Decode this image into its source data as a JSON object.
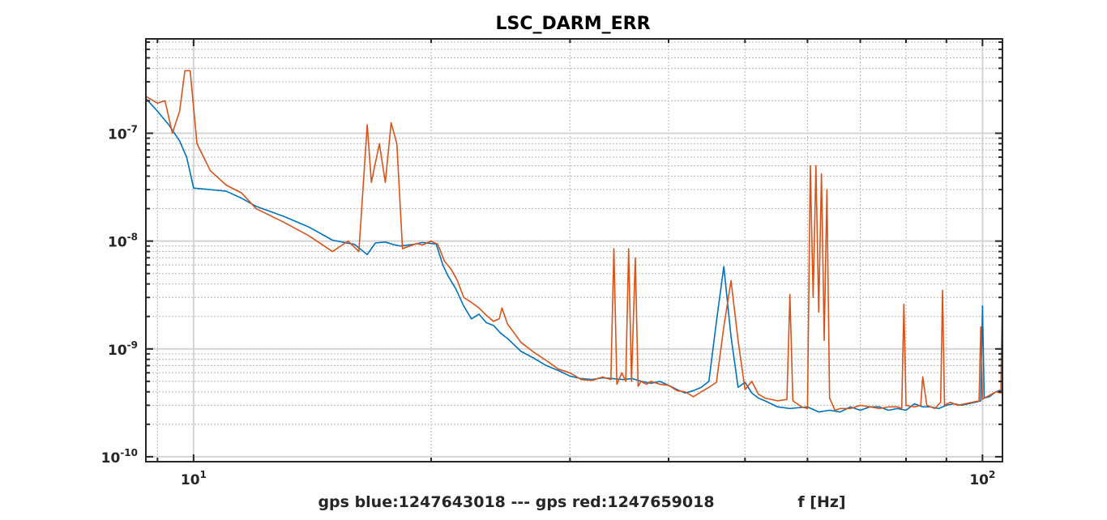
{
  "chart_data": {
    "type": "line",
    "title": "LSC_DARM_ERR",
    "xlabel_left": "gps blue:1247643018 --- gps red:1247659018",
    "xlabel_right": "f [Hz]",
    "ylabel": "",
    "xscale": "log",
    "yscale": "log",
    "xlim": [
      8.7,
      106
    ],
    "ylim": [
      9e-11,
      7.5e-07
    ],
    "x_tick_labels": [
      {
        "x": 10,
        "base": "10",
        "exp": "1"
      },
      {
        "x": 100,
        "base": "10",
        "exp": "2"
      }
    ],
    "y_tick_labels": [
      {
        "y": 1e-07,
        "base": "10",
        "exp": "-7"
      },
      {
        "y": 1e-08,
        "base": "10",
        "exp": "-8"
      },
      {
        "y": 1e-09,
        "base": "10",
        "exp": "-9"
      },
      {
        "y": 1e-10,
        "base": "10",
        "exp": "-10"
      }
    ],
    "grid": true,
    "minor_grid": true,
    "colors": {
      "blue": "#0072BD",
      "red": "#D95319"
    },
    "series": [
      {
        "color": "blue",
        "x": [
          8.7,
          9.0,
          9.3,
          9.6,
          9.8,
          10.0,
          10.5,
          11.0,
          11.5,
          12.0,
          13.0,
          14.0,
          15.0,
          16.0,
          16.6,
          17.0,
          17.5,
          18.0,
          18.3,
          19.0,
          19.5,
          20.0,
          20.3,
          20.7,
          21.0,
          21.5,
          22.0,
          22.5,
          23.0,
          23.5,
          24.0,
          24.5,
          25.0,
          26.0,
          27.0,
          28.0,
          29.0,
          30.0,
          31.0,
          32.0,
          33.0,
          34.0,
          35.0,
          36.0,
          37.0,
          38.0,
          39.0,
          40.0,
          41.0,
          42.0,
          43.0,
          44.0,
          45.0,
          46.0,
          47.0,
          48.0,
          49.0,
          50.0,
          51.0,
          52.0,
          53.0,
          55.0,
          57.0,
          60.0,
          62.0,
          64.0,
          66.0,
          68.0,
          70.0,
          72.0,
          74.0,
          76.0,
          78.0,
          80.0,
          82.0,
          84.0,
          86.0,
          88.0,
          90.0,
          92.0,
          94.0,
          96.0,
          98.0,
          99.5,
          100.0,
          100.5,
          102.0,
          104.0,
          106.0
        ],
        "y": [
          2.1e-07,
          1.6e-07,
          1.2e-07,
          8.5e-08,
          6e-08,
          3.1e-08,
          3e-08,
          2.9e-08,
          2.5e-08,
          2.1e-08,
          1.7e-08,
          1.35e-08,
          1.02e-08,
          9.3e-09,
          7.5e-09,
          9.6e-09,
          9.8e-09,
          9.2e-09,
          9e-09,
          9.3e-09,
          9.7e-09,
          9.5e-09,
          9.4e-09,
          6e-09,
          4.8e-09,
          3.6e-09,
          2.5e-09,
          1.9e-09,
          2.1e-09,
          1.75e-09,
          1.65e-09,
          1.4e-09,
          1.25e-09,
          9.5e-10,
          8.2e-10,
          7e-10,
          6.3e-10,
          5.6e-10,
          5.3e-10,
          5.2e-10,
          5.4e-10,
          5.3e-10,
          5.2e-10,
          5.3e-10,
          5e-10,
          4.8e-10,
          5e-10,
          4.6e-10,
          4.2e-10,
          3.9e-10,
          4.1e-10,
          4.4e-10,
          5e-10,
          1.8e-09,
          5.8e-09,
          1.3e-09,
          4.4e-10,
          4.9e-10,
          3.9e-10,
          3.5e-10,
          3.3e-10,
          2.9e-10,
          2.8e-10,
          2.9e-10,
          2.6e-10,
          2.7e-10,
          2.6e-10,
          2.9e-10,
          2.7e-10,
          2.9e-10,
          2.9e-10,
          2.7e-10,
          2.8e-10,
          2.7e-10,
          3.1e-10,
          2.9e-10,
          2.9e-10,
          2.8e-10,
          3e-10,
          3.1e-10,
          3e-10,
          3.1e-10,
          3.2e-10,
          3.3e-10,
          2.5e-09,
          3.5e-10,
          3.6e-10,
          4e-10,
          4.2e-10
        ]
      },
      {
        "color": "red",
        "x": [
          8.7,
          9.0,
          9.2,
          9.4,
          9.6,
          9.75,
          9.9,
          10.1,
          10.5,
          11.0,
          11.5,
          12.0,
          13.0,
          14.0,
          15.0,
          15.7,
          16.2,
          16.6,
          16.8,
          17.2,
          17.5,
          17.8,
          18.1,
          18.4,
          18.8,
          19.2,
          19.5,
          20.0,
          20.4,
          20.8,
          21.2,
          21.6,
          22.0,
          22.5,
          23.0,
          23.5,
          24.0,
          24.4,
          24.6,
          25.0,
          25.5,
          26.0,
          27.0,
          28.0,
          29.0,
          30.0,
          31.0,
          32.0,
          33.0,
          33.8,
          34.1,
          34.4,
          34.9,
          35.3,
          35.6,
          35.9,
          36.3,
          36.6,
          36.9,
          37.5,
          38.0,
          39.0,
          40.0,
          41.0,
          42.0,
          43.0,
          44.0,
          45.0,
          46.0,
          47.0,
          48.0,
          49.0,
          50.0,
          51.0,
          52.0,
          53.0,
          55.0,
          56.5,
          57.0,
          57.5,
          59.0,
          60.0,
          60.5,
          61.0,
          61.5,
          62.0,
          62.5,
          63.0,
          63.5,
          64.0,
          65.0,
          66.0,
          68.0,
          70.0,
          72.0,
          74.0,
          76.0,
          78.0,
          79.0,
          79.5,
          80.0,
          82.0,
          83.5,
          84.0,
          85.0,
          87.0,
          88.5,
          89.0,
          89.5,
          91.0,
          93.0,
          95.0,
          97.0,
          99.0,
          99.5,
          100.0,
          100.5,
          102.0,
          104.0,
          105.5,
          106.0
        ],
        "y": [
          2.2e-07,
          1.9e-07,
          2e-07,
          1e-07,
          1.6e-07,
          3.8e-07,
          3.8e-07,
          8e-08,
          4.5e-08,
          3.3e-08,
          2.8e-08,
          2e-08,
          1.5e-08,
          1.12e-08,
          8e-09,
          1e-08,
          8e-09,
          1.2e-07,
          3.5e-08,
          8e-08,
          3.5e-08,
          1.25e-07,
          8e-08,
          8.5e-09,
          9e-09,
          9.5e-09,
          9.2e-09,
          1e-08,
          9.3e-09,
          6.5e-09,
          5.5e-09,
          4.3e-09,
          3e-09,
          2.7e-09,
          2.4e-09,
          2.05e-09,
          1.8e-09,
          1.9e-09,
          2.4e-09,
          1.7e-09,
          1.4e-09,
          1.15e-09,
          9.3e-10,
          7.8e-10,
          6.5e-10,
          6e-10,
          5.2e-10,
          5.1e-10,
          5.5e-10,
          5.2e-10,
          8.5e-09,
          4.7e-10,
          6e-10,
          5e-10,
          8.5e-09,
          5e-10,
          7e-09,
          4.5e-10,
          5e-10,
          4.7e-10,
          5e-10,
          4.7e-10,
          4.6e-10,
          4.1e-10,
          4e-10,
          3.6e-10,
          4e-10,
          4.4e-10,
          4.9e-10,
          1.6e-09,
          4.3e-09,
          1.2e-09,
          4.2e-10,
          5e-10,
          3.8e-10,
          3.5e-10,
          3.3e-10,
          3.4e-10,
          3.2e-09,
          3.3e-10,
          2.9e-10,
          2.8e-10,
          5e-08,
          3e-09,
          5e-08,
          2.2e-09,
          4.2e-08,
          1.2e-09,
          3e-08,
          3.5e-10,
          2.7e-10,
          2.8e-10,
          2.8e-10,
          3e-10,
          2.9e-10,
          2.8e-10,
          2.9e-10,
          2.9e-10,
          2.8e-10,
          2.6e-09,
          3e-10,
          2.9e-10,
          3e-10,
          5.5e-10,
          3e-10,
          2.8e-10,
          3.2e-10,
          3.5e-09,
          3e-10,
          3.2e-10,
          3e-10,
          3.1e-10,
          3.2e-10,
          3.3e-10,
          1.6e-09,
          3.4e-10,
          3.5e-10,
          3.7e-10,
          4e-10,
          3.9e-10,
          3.9e-09
        ]
      }
    ]
  }
}
